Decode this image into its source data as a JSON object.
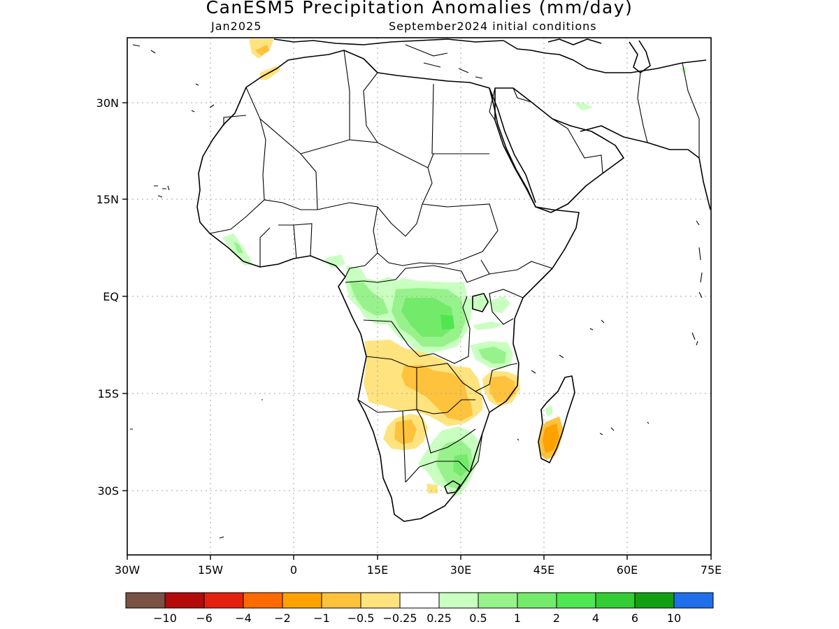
{
  "title": "CanESM5 Precipitation Anomalies (mm/day)",
  "subtitle_left": "Jan2025",
  "subtitle_right": "September2024 initial conditions",
  "axes": {
    "lon_ticks": [
      "30W",
      "15W",
      "0",
      "15E",
      "30E",
      "45E",
      "60E",
      "75E"
    ],
    "lat_ticks": [
      "30N",
      "15N",
      "EQ",
      "15S",
      "30S"
    ]
  },
  "colorbar": {
    "colors": [
      "#7a5145",
      "#b40a0a",
      "#e4210e",
      "#ff6a00",
      "#ffa200",
      "#ffc23c",
      "#ffe37e",
      "#ffffff",
      "#c9ffc0",
      "#97f28c",
      "#74ea6a",
      "#50e650",
      "#33cc33",
      "#12a012",
      "#1f6fea"
    ],
    "labels": [
      "−10",
      "−6",
      "−4",
      "−2",
      "−1",
      "−0.5",
      "−0.25",
      "0.25",
      "0.5",
      "1",
      "2",
      "4",
      "6",
      "10"
    ]
  }
}
